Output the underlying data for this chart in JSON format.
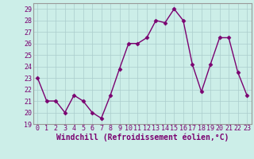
{
  "x": [
    0,
    1,
    2,
    3,
    4,
    5,
    6,
    7,
    8,
    9,
    10,
    11,
    12,
    13,
    14,
    15,
    16,
    17,
    18,
    19,
    20,
    21,
    22,
    23
  ],
  "y": [
    23,
    21,
    21,
    20,
    21.5,
    21,
    20,
    19.5,
    21.5,
    23.8,
    26,
    26,
    26.5,
    28,
    27.8,
    29,
    28,
    24.2,
    21.8,
    24.2,
    26.5,
    26.5,
    23.5,
    21.5
  ],
  "line_color": "#7a0070",
  "marker": "D",
  "marker_size": 2.5,
  "line_width": 1.0,
  "bg_color": "#cceee8",
  "grid_color": "#aacccc",
  "xlabel": "Windchill (Refroidissement éolien,°C)",
  "xlabel_fontsize": 7.0,
  "ylim": [
    19,
    29.5
  ],
  "xlim": [
    -0.5,
    23.5
  ],
  "yticks": [
    19,
    20,
    21,
    22,
    23,
    24,
    25,
    26,
    27,
    28,
    29
  ],
  "xticks": [
    0,
    1,
    2,
    3,
    4,
    5,
    6,
    7,
    8,
    9,
    10,
    11,
    12,
    13,
    14,
    15,
    16,
    17,
    18,
    19,
    20,
    21,
    22,
    23
  ],
  "tick_fontsize": 6.0
}
